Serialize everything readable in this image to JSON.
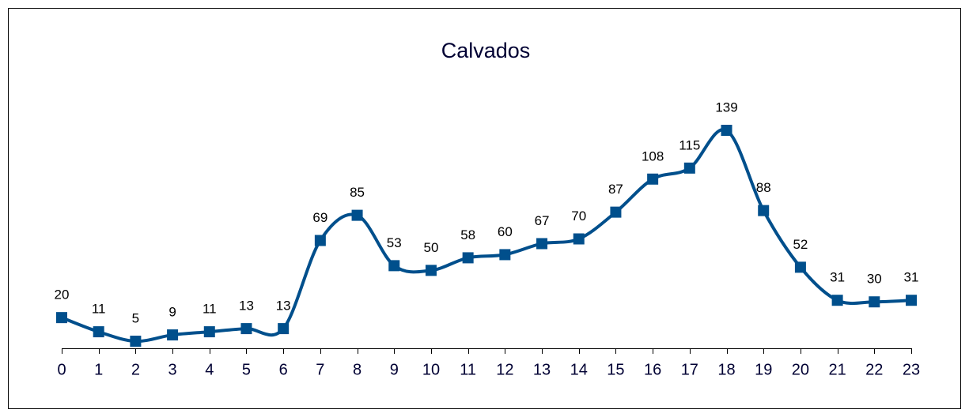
{
  "chart_data": {
    "type": "line",
    "title": "Calvados",
    "categories": [
      "0",
      "1",
      "2",
      "3",
      "4",
      "5",
      "6",
      "7",
      "8",
      "9",
      "10",
      "11",
      "12",
      "13",
      "14",
      "15",
      "16",
      "17",
      "18",
      "19",
      "20",
      "21",
      "22",
      "23"
    ],
    "values": [
      20,
      11,
      5,
      9,
      11,
      13,
      13,
      69,
      85,
      53,
      50,
      58,
      60,
      67,
      70,
      87,
      108,
      115,
      139,
      88,
      52,
      31,
      30,
      31
    ],
    "color": "#004f8c",
    "ylim": [
      0,
      140
    ],
    "smooth": true
  }
}
